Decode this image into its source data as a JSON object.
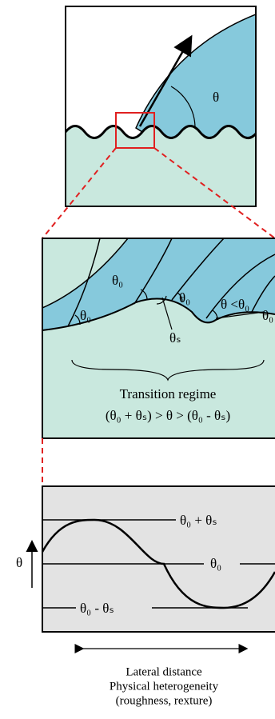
{
  "top_panel": {
    "angle_label": "θ"
  },
  "zoom_panel": {
    "labels": [
      "θ₀",
      "θ₀",
      "θ₀",
      "θₛ",
      "θ <θ₀",
      "θ₀"
    ],
    "title": "Transition regime",
    "formula": "(θ₀ + θₛ) > θ > (θ₀ - θₛ)"
  },
  "plot_panel": {
    "upper_label": "θ₀ + θₛ",
    "middle_label": "θ₀",
    "lower_label": "θ₀ - θₛ",
    "axis_label": "θ"
  },
  "caption": [
    "Lateral distance",
    "Physical heterogeneity",
    "(roughness, rexture)"
  ]
}
